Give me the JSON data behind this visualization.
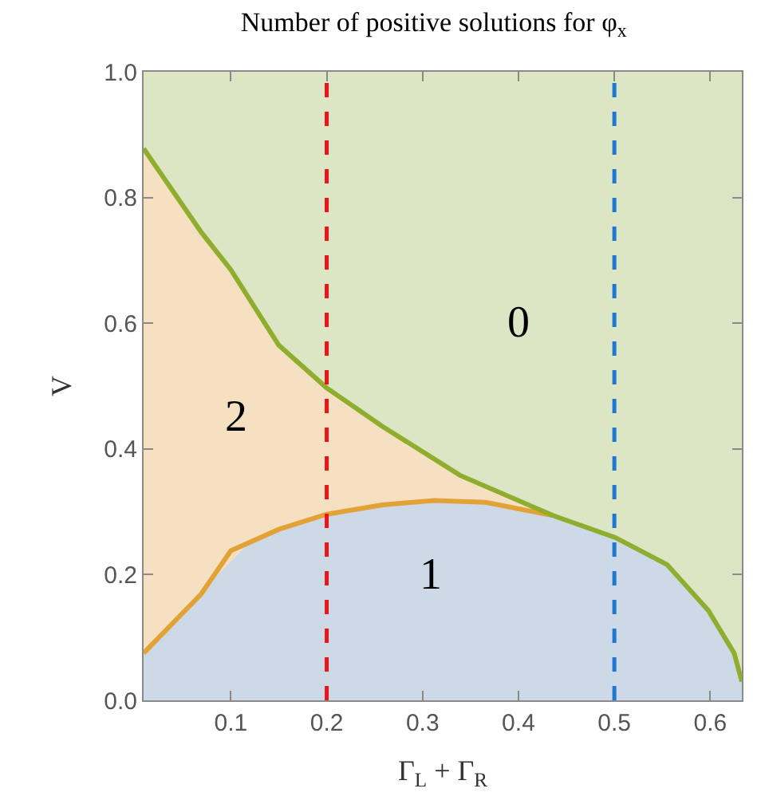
{
  "chart_data": {
    "type": "area",
    "title": "Number of positive solutions for φ$_{x}$",
    "xlabel": "Γ$_{L}$ + Γ$_{R}$",
    "ylabel": "V",
    "series": [
      {
        "color": "#f5e1c1",
        "x": [
          0.009,
          0.069,
          0.1,
          0.15,
          0.2,
          0.258,
          0.339,
          0.436
        ],
        "values": [
          0.878,
          0.745,
          0.685,
          0.565,
          0.497,
          0.436,
          0.358,
          0.294
        ]
      },
      {
        "color": "#cdd9e6",
        "x": [
          0.009,
          0.03,
          0.05,
          0.08,
          0.12,
          0.17,
          0.23,
          0.29,
          0.35,
          0.4,
          0.436,
          0.501,
          0.555,
          0.598,
          0.625,
          0.633
        ],
        "values": [
          0.075,
          0.11,
          0.14,
          0.19,
          0.252,
          0.282,
          0.305,
          0.316,
          0.317,
          0.307,
          0.294,
          0.259,
          0.216,
          0.143,
          0.075,
          0.03
        ]
      },
      {
        "type": "line",
        "color": "#e3a235",
        "x": [
          0.009,
          0.069,
          0.1,
          0.15,
          0.2,
          0.258,
          0.312,
          0.366,
          0.436
        ],
        "values": [
          0.075,
          0.169,
          0.238,
          0.272,
          0.296,
          0.311,
          0.318,
          0.315,
          0.294
        ]
      },
      {
        "type": "line",
        "color": "#8fae2f",
        "x": [
          0.009,
          0.069,
          0.1,
          0.15,
          0.2,
          0.258,
          0.339,
          0.436,
          0.501,
          0.555,
          0.598,
          0.625,
          0.633
        ],
        "values": [
          0.878,
          0.745,
          0.685,
          0.565,
          0.497,
          0.436,
          0.358,
          0.294,
          0.259,
          0.216,
          0.143,
          0.075,
          0.03
        ]
      }
    ],
    "bands": [
      {
        "axis": "x",
        "from": 0.009,
        "to": 0.633,
        "color": "#dde6c4"
      }
    ],
    "ref_lines": [
      {
        "axis": "x",
        "value": 0.2,
        "color": "#e8161b",
        "line_style": "dashed"
      },
      {
        "axis": "x",
        "value": 0.5,
        "color": "#1f78d1",
        "line_style": "dashed"
      }
    ],
    "annotations": [
      "0",
      "2",
      "1"
    ],
    "xlim": [
      0.009,
      0.633
    ],
    "xticks": [
      0.1,
      0.2,
      0.3,
      0.4,
      0.5,
      0.6
    ],
    "ylim": [
      0,
      1
    ],
    "yticks": [
      {
        "value": 0,
        "label": "0.0"
      },
      0.2,
      0.4,
      0.6,
      0.8,
      {
        "value": 1,
        "label": "1.0"
      }
    ],
    "grid": false,
    "legend": false
  }
}
